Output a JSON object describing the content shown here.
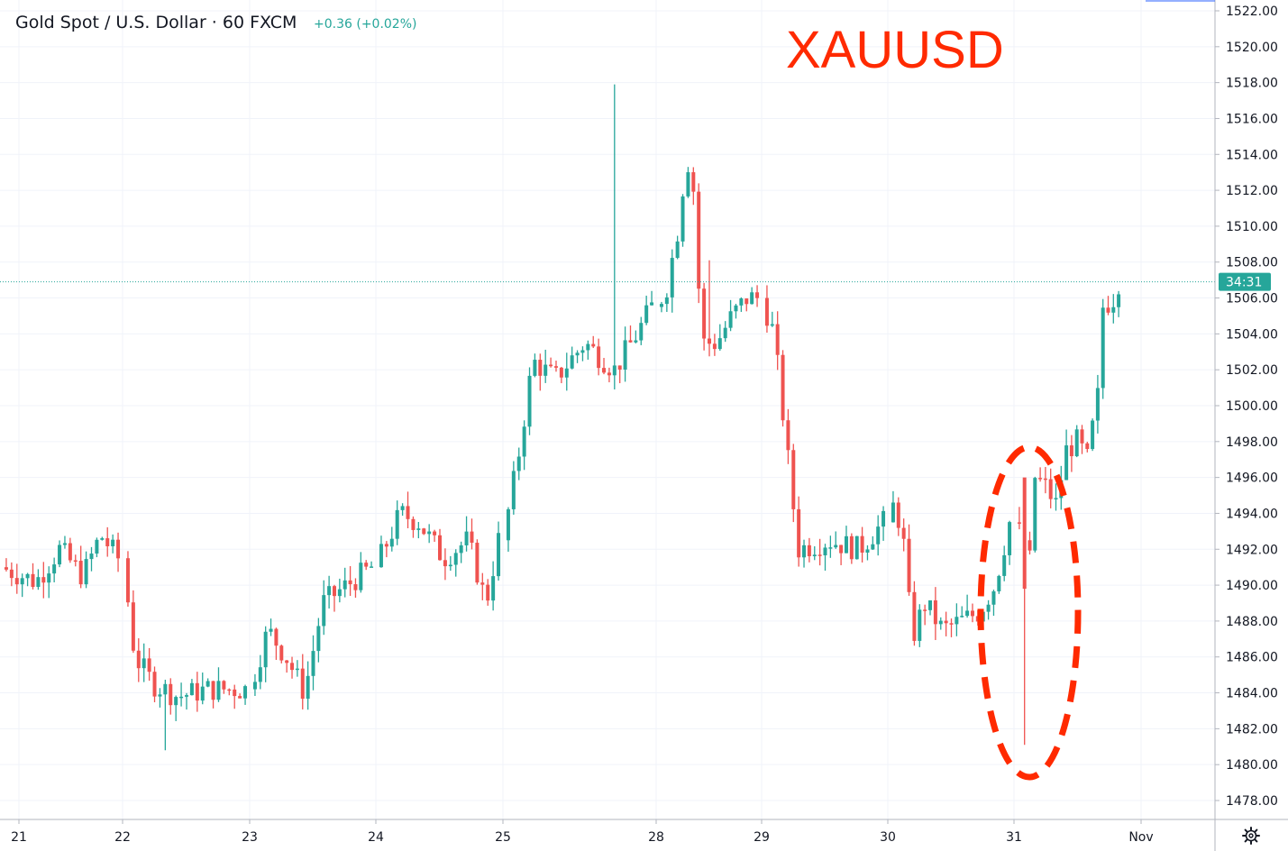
{
  "header": {
    "symbol": "Gold Spot / U.S. Dollar",
    "interval": "60",
    "source": "FXCM",
    "change": "+0.36 (+0.02%)",
    "change_color": "#26a69a"
  },
  "annotation": {
    "label": "XAUUSD",
    "label_color": "#ff2a00",
    "ellipse_color": "#ff2a00",
    "ellipse_target": "spike low on Oct 31"
  },
  "price_axis": {
    "ticks": [
      "1478.00",
      "1480.00",
      "1482.00",
      "1484.00",
      "1486.00",
      "1488.00",
      "1490.00",
      "1492.00",
      "1494.00",
      "1496.00",
      "1498.00",
      "1500.00",
      "1502.00",
      "1504.00",
      "1506.00",
      "1508.00",
      "1510.00",
      "1512.00",
      "1514.00",
      "1516.00",
      "1518.00",
      "1520.00",
      "1522.00"
    ],
    "countdown_label": "34:31",
    "countdown_color": "#26a69a"
  },
  "settings_icon": "gear-icon",
  "chart_data": {
    "type": "candlestick",
    "title": "",
    "xlabel": "",
    "ylabel": "",
    "ylim": [
      1477,
      1523
    ],
    "x_ticks": [
      "21",
      "22",
      "23",
      "24",
      "25",
      "28",
      "29",
      "30",
      "31",
      "Nov"
    ],
    "current_price": 1506.9,
    "grid": true,
    "up_color": "#26a69a",
    "down_color": "#ef5350",
    "approx_ohlc": {
      "note_free_series": true,
      "day_opens": [
        {
          "day": "21",
          "open": 1491.0,
          "close": 1491.5,
          "high": 1495.2,
          "low": 1489.0
        },
        {
          "day": "22",
          "open": 1491.5,
          "close": 1484.2,
          "high": 1492.0,
          "low": 1480.8
        },
        {
          "day": "23",
          "open": 1484.2,
          "close": 1491.0,
          "high": 1496.2,
          "low": 1483.0
        },
        {
          "day": "24",
          "open": 1491.0,
          "close": 1492.5,
          "high": 1496.2,
          "low": 1488.0
        },
        {
          "day": "25",
          "open": 1492.5,
          "close": 1505.5,
          "high": 1506.5,
          "low": 1490.5
        },
        {
          "day": "28",
          "open": 1505.5,
          "close": 1504.5,
          "high": 1518.0,
          "low": 1500.5
        },
        {
          "day": "29",
          "open": 1504.5,
          "close": 1492.5,
          "high": 1508.0,
          "low": 1490.0
        },
        {
          "day": "30",
          "open": 1492.5,
          "close": 1489.5,
          "high": 1494.8,
          "low": 1483.5
        },
        {
          "day": "31",
          "open": 1489.5,
          "close": 1499.0,
          "high": 1499.5,
          "low": 1481.2
        },
        {
          "day": "Nov",
          "open": 1499.0,
          "close": 1506.9,
          "high": 1508.0,
          "low": 1497.5
        }
      ]
    }
  }
}
